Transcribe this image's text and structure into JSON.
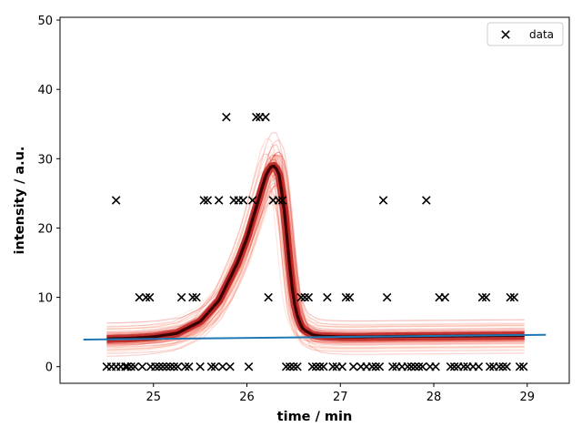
{
  "chart_data": {
    "type": "scatter",
    "xlabel": "time / min",
    "ylabel": "intensity / a.u.",
    "xlim": [
      24.0,
      29.45
    ],
    "ylim": [
      -2.4,
      50.4
    ],
    "xticks": [
      25,
      26,
      27,
      28,
      29
    ],
    "yticks": [
      0,
      10,
      20,
      30,
      40,
      50
    ],
    "legend": {
      "position": "top-right",
      "entries": [
        {
          "label": "data",
          "marker": "x",
          "color": "#000000"
        }
      ]
    },
    "grid": false,
    "colors": {
      "data": "#000000",
      "baseline": "#1f77b4",
      "fit_core": "#3a0000",
      "fit_band": "#e8341c"
    },
    "series": [
      {
        "name": "data",
        "type": "scatter",
        "marker": "x",
        "x": [
          24.5,
          24.55,
          24.6,
          24.6,
          24.65,
          24.7,
          24.72,
          24.76,
          24.8,
          24.85,
          24.88,
          24.92,
          24.96,
          24.97,
          25.02,
          25.06,
          25.1,
          25.14,
          25.18,
          25.22,
          25.26,
          25.3,
          25.34,
          25.38,
          25.42,
          25.46,
          25.5,
          25.54,
          25.58,
          25.62,
          25.66,
          25.7,
          25.74,
          25.78,
          25.82,
          25.86,
          25.91,
          25.96,
          26.02,
          26.06,
          26.1,
          26.14,
          26.2,
          26.23,
          26.28,
          26.34,
          26.38,
          26.42,
          26.46,
          26.5,
          26.54,
          26.58,
          26.62,
          26.66,
          26.7,
          26.74,
          26.78,
          26.82,
          26.86,
          26.92,
          26.96,
          27.02,
          27.06,
          27.1,
          27.14,
          27.22,
          27.28,
          27.34,
          27.38,
          27.42,
          27.46,
          27.5,
          27.56,
          27.6,
          27.66,
          27.72,
          27.76,
          27.8,
          27.84,
          27.88,
          27.92,
          27.96,
          28.02,
          28.06,
          28.12,
          28.18,
          28.22,
          28.26,
          28.32,
          28.36,
          28.42,
          28.48,
          28.52,
          28.56,
          28.6,
          28.64,
          28.7,
          28.74,
          28.78,
          28.82,
          28.86,
          28.92,
          28.96
        ],
        "y": [
          0,
          0,
          24,
          0,
          0,
          0,
          0,
          0,
          0,
          10,
          0,
          10,
          10,
          0,
          0,
          0,
          0,
          0,
          0,
          0,
          0,
          10,
          0,
          0,
          10,
          10,
          0,
          24,
          24,
          0,
          0,
          24,
          0,
          36,
          0,
          24,
          24,
          24,
          0,
          24,
          36,
          36,
          36,
          10,
          24,
          24,
          24,
          0,
          0,
          0,
          0,
          10,
          10,
          10,
          0,
          0,
          0,
          0,
          10,
          0,
          0,
          0,
          10,
          10,
          0,
          0,
          0,
          0,
          0,
          0,
          24,
          10,
          0,
          0,
          0,
          0,
          0,
          0,
          0,
          0,
          24,
          0,
          0,
          10,
          10,
          0,
          0,
          0,
          0,
          0,
          0,
          0,
          10,
          10,
          0,
          0,
          0,
          0,
          0,
          10,
          10,
          0,
          0
        ]
      },
      {
        "name": "baseline",
        "type": "line",
        "x": [
          24.25,
          29.2
        ],
        "y": [
          3.9,
          4.6
        ]
      },
      {
        "name": "fit",
        "type": "line",
        "x": [
          24.5,
          24.75,
          25.0,
          25.25,
          25.5,
          25.7,
          25.9,
          26.0,
          26.1,
          26.2,
          26.25,
          26.3,
          26.35,
          26.4,
          26.45,
          26.5,
          26.55,
          26.6,
          26.7,
          26.8,
          27.0,
          27.25,
          27.5,
          28.0,
          28.5,
          28.97
        ],
        "y": [
          4.0,
          4.1,
          4.3,
          4.8,
          6.5,
          9.5,
          15.0,
          18.5,
          23.0,
          27.5,
          28.8,
          29.0,
          27.5,
          22.5,
          15.5,
          9.5,
          6.8,
          5.4,
          4.6,
          4.4,
          4.3,
          4.3,
          4.35,
          4.4,
          4.45,
          4.5
        ]
      }
    ]
  }
}
